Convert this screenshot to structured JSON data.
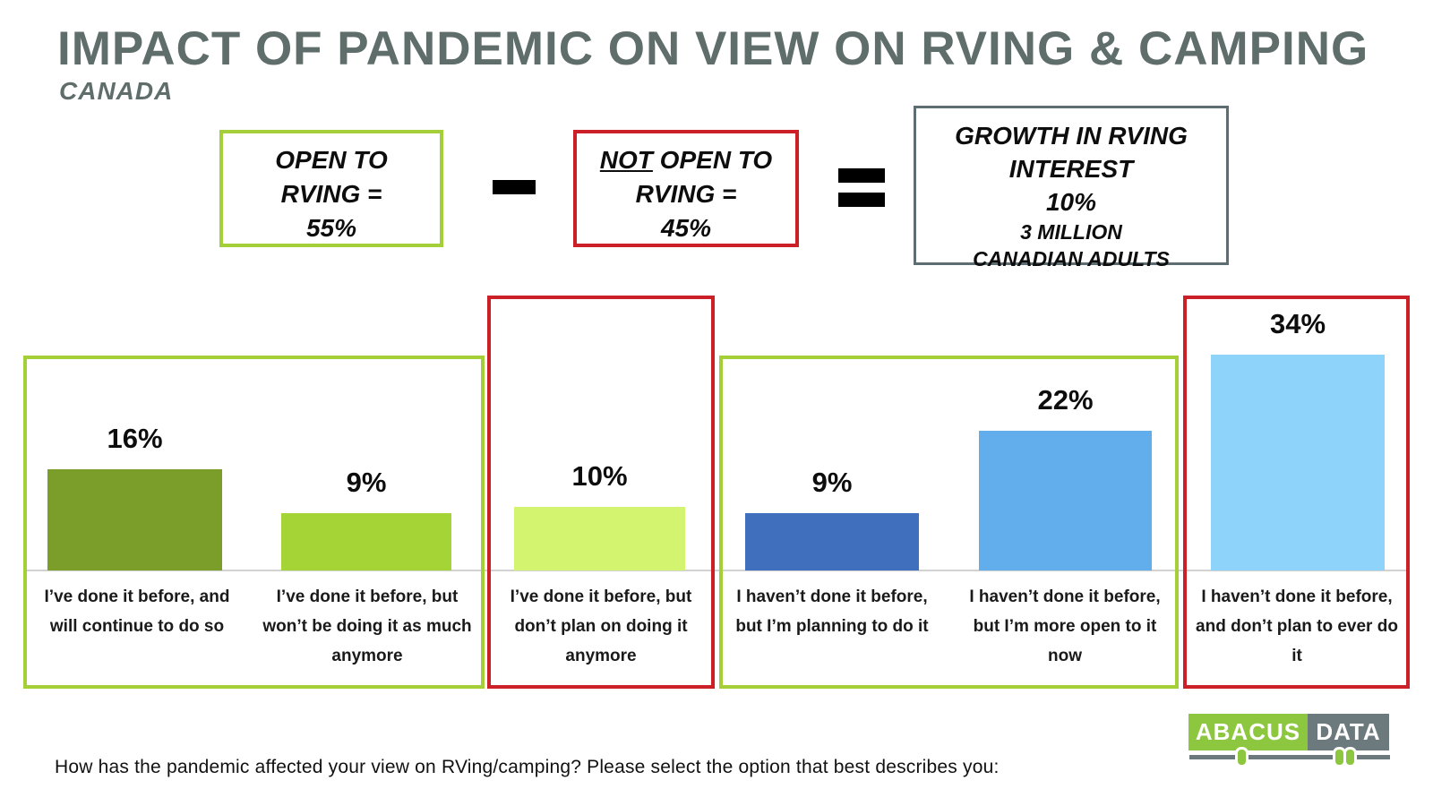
{
  "header": {
    "title": "IMPACT OF PANDEMIC ON VIEW ON RVING & CAMPING",
    "subtitle": "CANADA"
  },
  "equation": {
    "open_box": {
      "line1": "OPEN TO",
      "line2": "RVING =",
      "line3": "55%"
    },
    "minus_sign": "−",
    "not_open_box": {
      "not_word": "NOT",
      "line1_rest": " OPEN TO",
      "line2": "RVING =",
      "line3": "45%"
    },
    "equals_sign": "=",
    "growth_box": {
      "line1": "GROWTH IN RVING",
      "line2": "INTEREST",
      "line3": "10%",
      "line4": "3 MILLION",
      "line5": "CANADIAN ADULTS"
    }
  },
  "chart_data": {
    "type": "bar",
    "title": "Impact of pandemic on view on RVing & camping (Canada)",
    "categories": [
      "I’ve done it before, and\nwill continue to do so",
      "I’ve done it before, but\nwon’t be doing it as much\nanymore",
      "I’ve done it before, but\ndon’t plan on doing it\nanymore",
      "I haven’t done it before,\nbut I’m planning to do it",
      "I haven’t done it before,\nbut I’m more open to it\nnow",
      "I haven’t done it before,\nand don’t plan to ever do\nit"
    ],
    "values": [
      16,
      9,
      10,
      9,
      22,
      34
    ],
    "value_labels": [
      "16%",
      "9%",
      "10%",
      "9%",
      "22%",
      "34%"
    ],
    "colors": [
      "#7a9e29",
      "#a5d436",
      "#d3f46e",
      "#3f6fbd",
      "#62adeb",
      "#8dd3fa"
    ],
    "xlabel": "",
    "ylabel": "",
    "ylim": [
      0,
      40
    ],
    "grid": false,
    "legend": "none",
    "groups": [
      {
        "style": "open-green",
        "bar_indexes": [
          0,
          1
        ]
      },
      {
        "style": "not-open-red",
        "bar_indexes": [
          2
        ]
      },
      {
        "style": "open-green",
        "bar_indexes": [
          3,
          4
        ]
      },
      {
        "style": "not-open-red",
        "bar_indexes": [
          5
        ]
      }
    ],
    "summary": {
      "open_to_rving": "55%",
      "not_open_to_rving": "45%",
      "growth_in_interest": "10%",
      "growth_adults": "3 million Canadian adults"
    }
  },
  "footer": {
    "question": "How has the pandemic affected your view on RVing/camping? Please select the option that best describes you:",
    "logo": {
      "part1": "ABACUS",
      "part2": "DATA"
    }
  },
  "colors": {
    "title_gray": "#5f6e6b",
    "green_border": "#a5cf39",
    "red_border": "#cb2027",
    "gray_border": "#5e6d71",
    "logo_green": "#8dc63f",
    "logo_gray": "#6d7a7d",
    "axis_line": "#d2d2d2"
  }
}
